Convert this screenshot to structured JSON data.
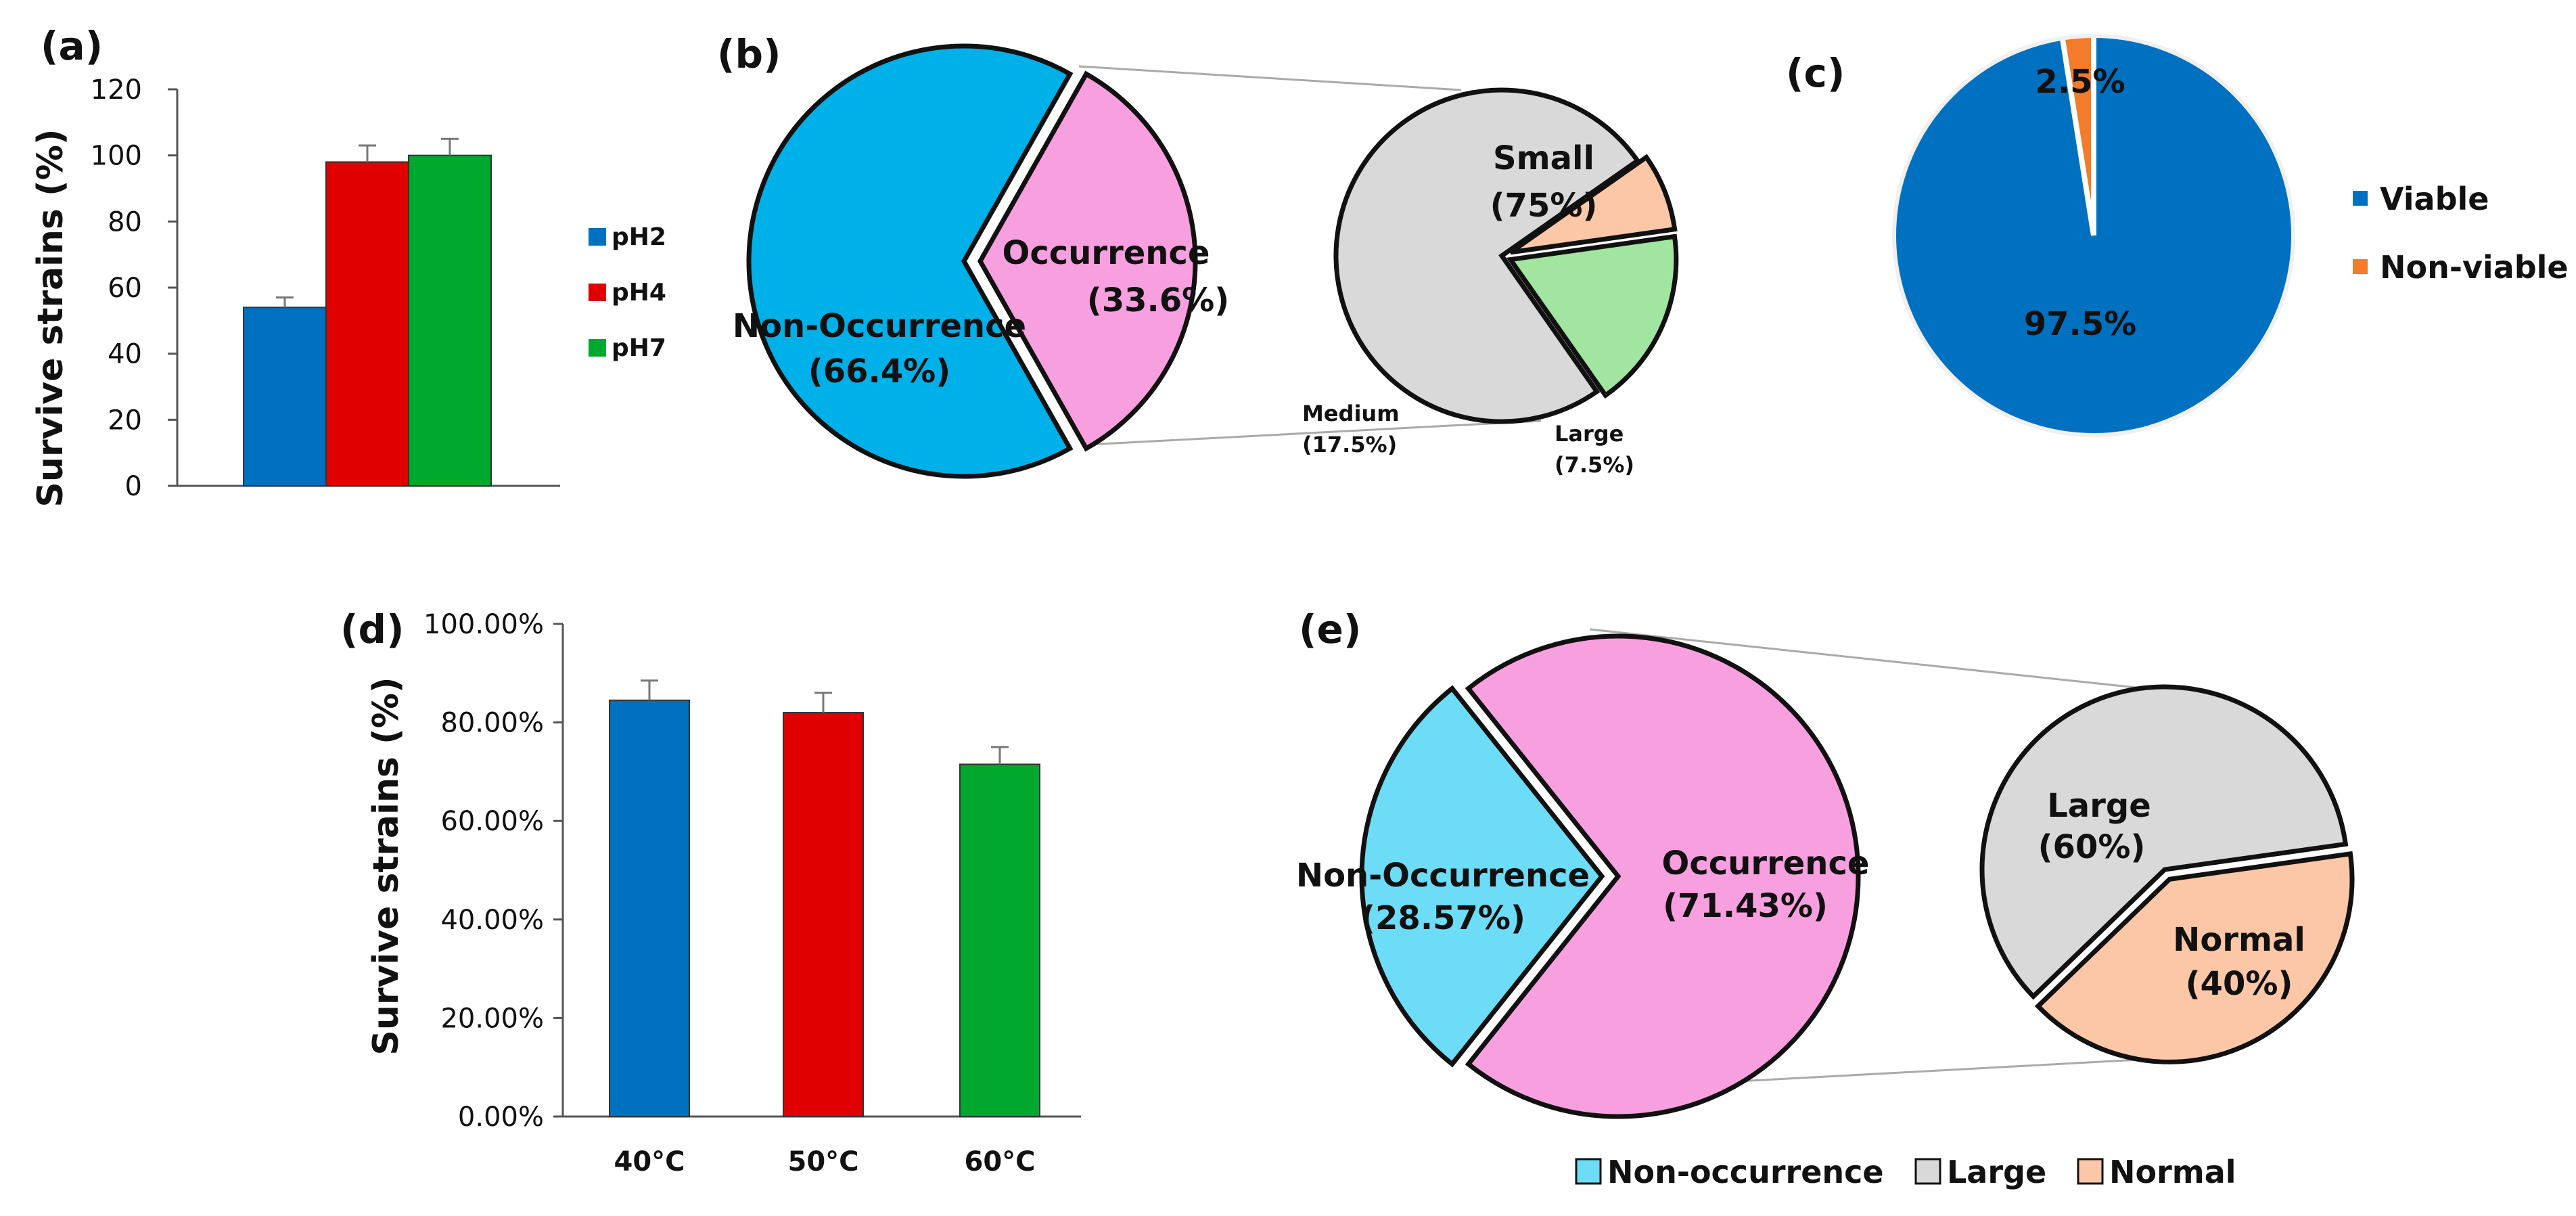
{
  "chart_data": [
    {
      "panel": "(a)",
      "type": "bar",
      "ylabel": "Survive strains (%)",
      "ylim": [
        0,
        120
      ],
      "yticks": [
        "0",
        "20",
        "40",
        "60",
        "80",
        "100",
        "120"
      ],
      "series": [
        {
          "name": "pH2",
          "value": 54,
          "error": 3,
          "color": "#0070C0"
        },
        {
          "name": "pH4",
          "value": 98,
          "error": 5,
          "color": "#E00000"
        },
        {
          "name": "pH7",
          "value": 100,
          "error": 5,
          "color": "#00A82D"
        }
      ],
      "legend": [
        "pH2",
        "pH4",
        "pH7"
      ]
    },
    {
      "panel": "(b)",
      "type": "pie",
      "main": {
        "slices": [
          {
            "label": "Non-Occurrence",
            "pct_text": "(66.4%)",
            "value": 66.4,
            "color": "#00B0E8"
          },
          {
            "label": "Occurrence",
            "pct_text": "(33.6%)",
            "value": 33.6,
            "color": "#F8A0DF"
          }
        ]
      },
      "sub": {
        "slices": [
          {
            "label": "Small",
            "pct_text": "(75%)",
            "value": 75,
            "color": "#D9D9D9"
          },
          {
            "label": "Large",
            "pct_text": "(7.5%)",
            "value": 7.5,
            "color": "#FCC7A7"
          },
          {
            "label": "Medium",
            "pct_text": "(17.5%)",
            "value": 17.5,
            "color": "#A2E5A0"
          }
        ]
      }
    },
    {
      "panel": "(c)",
      "type": "pie",
      "slices": [
        {
          "label": "Viable",
          "pct_text": "97.5%",
          "value": 97.5,
          "color": "#0070C0"
        },
        {
          "label": "Non-viable",
          "pct_text": "2.5%",
          "value": 2.5,
          "color": "#F47B2A"
        }
      ],
      "legend": [
        "Viable",
        "Non-viable"
      ]
    },
    {
      "panel": "(d)",
      "type": "bar",
      "ylabel": "Survive strains (%)",
      "ylim": [
        0,
        100
      ],
      "yticks": [
        "0.00%",
        "20.00%",
        "40.00%",
        "60.00%",
        "80.00%",
        "100.00%"
      ],
      "categories": [
        "40°C",
        "50°C",
        "60°C"
      ],
      "values": [
        84.5,
        82,
        71.5
      ],
      "errors": [
        4,
        4,
        3.5
      ],
      "colors": [
        "#0070C0",
        "#E00000",
        "#00A82D"
      ]
    },
    {
      "panel": "(e)",
      "type": "pie",
      "main": {
        "slices": [
          {
            "label": "Occurrence",
            "pct_text": "(71.43%)",
            "value": 71.43,
            "color": "#F8A0DF"
          },
          {
            "label": "Non-Occurrence",
            "pct_text": "(28.57%)",
            "value": 28.57,
            "color": "#6DDCF7"
          }
        ]
      },
      "sub": {
        "slices": [
          {
            "label": "Large",
            "pct_text": "(60%)",
            "value": 60,
            "color": "#D9D9D9"
          },
          {
            "label": "Normal",
            "pct_text": "(40%)",
            "value": 40,
            "color": "#FCC7A7"
          }
        ]
      },
      "legend": [
        {
          "label": "Non-occurrence",
          "color": "#6DDCF7"
        },
        {
          "label": "Large",
          "color": "#D9D9D9"
        },
        {
          "label": "Normal",
          "color": "#FCC7A7"
        }
      ]
    }
  ]
}
